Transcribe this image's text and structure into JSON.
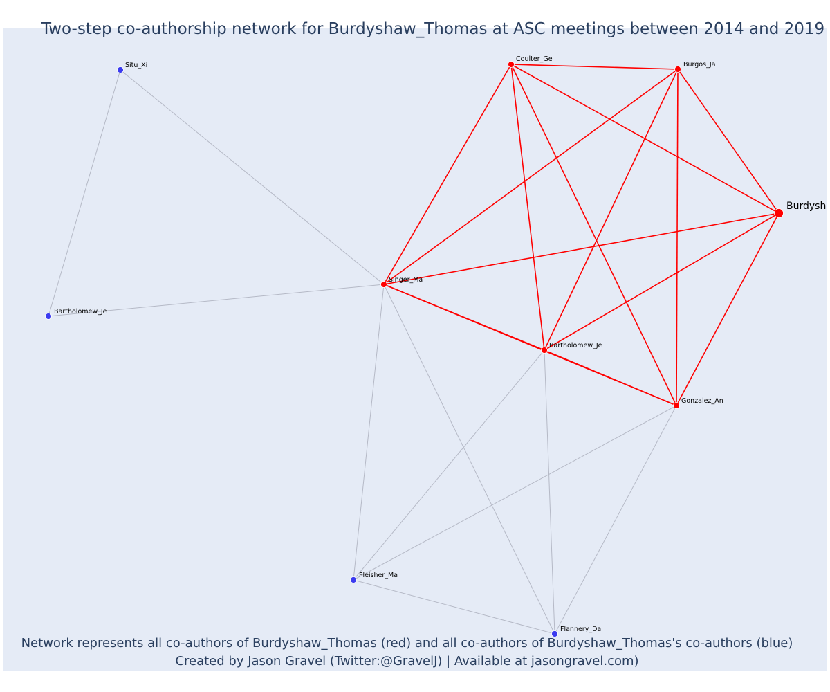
{
  "title": "Two-step co-authorship network for Burdyshaw_Thomas at ASC meetings between 2014 and 2019",
  "caption_line1": "Network represents all co-authors of Burdyshaw_Thomas (red) and all co-authors of Burdyshaw_Thomas's co-authors (blue)",
  "caption_line2": "Created by Jason Gravel (Twitter:@GravelJ) | Available at jasongravel.com)",
  "colors": {
    "red": "#ff0000",
    "blue": "#3b3bf0",
    "grey_edge": "#b5b9c6",
    "background": "#e5ebf6"
  },
  "nodes": [
    {
      "id": "burdyshaw",
      "label": "Burdysh",
      "group": "focal"
    },
    {
      "id": "coulter",
      "label": "Coulter_Ge",
      "group": "red"
    },
    {
      "id": "burgos",
      "label": "Burgos_Ja",
      "group": "red"
    },
    {
      "id": "singer",
      "label": "Singer_Ma",
      "group": "red"
    },
    {
      "id": "bartholomew_red",
      "label": "Bartholomew_Je",
      "group": "red"
    },
    {
      "id": "gonzalez",
      "label": "Gonzalez_An",
      "group": "red"
    },
    {
      "id": "situ",
      "label": "Situ_Xi",
      "group": "blue"
    },
    {
      "id": "bartholomew_blue",
      "label": "Bartholomew_Je",
      "group": "blue"
    },
    {
      "id": "fleisher",
      "label": "Fleisher_Ma",
      "group": "blue"
    },
    {
      "id": "flannery",
      "label": "Flannery_Da",
      "group": "blue"
    }
  ],
  "edges_red": [
    [
      "coulter",
      "burgos"
    ],
    [
      "coulter",
      "burdyshaw"
    ],
    [
      "coulter",
      "singer"
    ],
    [
      "coulter",
      "bartholomew_red"
    ],
    [
      "coulter",
      "gonzalez"
    ],
    [
      "burgos",
      "burdyshaw"
    ],
    [
      "burgos",
      "singer"
    ],
    [
      "burgos",
      "bartholomew_red"
    ],
    [
      "burgos",
      "gonzalez"
    ],
    [
      "burdyshaw",
      "singer"
    ],
    [
      "burdyshaw",
      "bartholomew_red"
    ],
    [
      "burdyshaw",
      "gonzalez"
    ],
    [
      "singer",
      "bartholomew_red"
    ],
    [
      "singer",
      "gonzalez"
    ],
    [
      "bartholomew_red",
      "gonzalez"
    ]
  ],
  "edges_grey": [
    [
      "situ",
      "singer"
    ],
    [
      "situ",
      "bartholomew_blue"
    ],
    [
      "bartholomew_blue",
      "singer"
    ],
    [
      "singer",
      "fleisher"
    ],
    [
      "singer",
      "flannery"
    ],
    [
      "bartholomew_red",
      "fleisher"
    ],
    [
      "bartholomew_red",
      "flannery"
    ],
    [
      "gonzalez",
      "fleisher"
    ],
    [
      "gonzalez",
      "flannery"
    ],
    [
      "fleisher",
      "flannery"
    ]
  ]
}
